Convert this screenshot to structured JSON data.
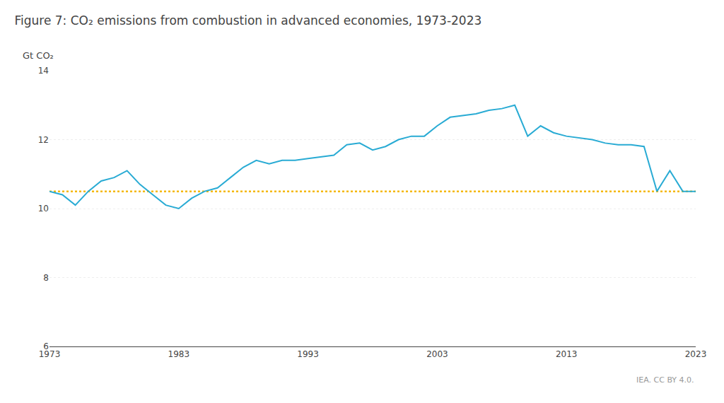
{
  "chart_data": {
    "type": "line",
    "title": "Figure 7: CO₂ emissions from combustion in advanced economies, 1973-2023",
    "ylabel": "Gt CO₂",
    "x": [
      1973,
      1974,
      1975,
      1976,
      1977,
      1978,
      1979,
      1980,
      1981,
      1982,
      1983,
      1984,
      1985,
      1986,
      1987,
      1988,
      1989,
      1990,
      1991,
      1992,
      1993,
      1994,
      1995,
      1996,
      1997,
      1998,
      1999,
      2000,
      2001,
      2002,
      2003,
      2004,
      2005,
      2006,
      2007,
      2008,
      2009,
      2010,
      2011,
      2012,
      2013,
      2014,
      2015,
      2016,
      2017,
      2018,
      2019,
      2020,
      2021,
      2022,
      2023
    ],
    "values": [
      10.5,
      10.4,
      10.1,
      10.5,
      10.8,
      10.9,
      11.1,
      10.7,
      10.4,
      10.1,
      10.0,
      10.3,
      10.5,
      10.6,
      10.9,
      11.2,
      11.4,
      11.3,
      11.4,
      11.4,
      11.45,
      11.5,
      11.55,
      11.85,
      11.9,
      11.7,
      11.8,
      12.0,
      12.1,
      12.1,
      12.4,
      12.65,
      12.7,
      12.75,
      12.85,
      12.9,
      13.0,
      12.1,
      12.4,
      12.2,
      12.1,
      12.05,
      12.0,
      11.9,
      11.85,
      11.85,
      11.8,
      10.5,
      11.1,
      10.5,
      10.5
    ],
    "color": "#29ABD4",
    "reference_lines": [
      {
        "value": 10.5,
        "color": "#F5B800",
        "line_style": "dotted"
      }
    ],
    "annotations": [
      {
        "text": "IEA. CC BY 4.0."
      }
    ],
    "xlim": [
      1973,
      2023
    ],
    "xticks": [
      1973,
      1983,
      1993,
      2003,
      2013,
      2023
    ],
    "ylim": [
      6,
      14
    ],
    "yticks": [
      6,
      8,
      10,
      12,
      14
    ],
    "grid": "y"
  }
}
